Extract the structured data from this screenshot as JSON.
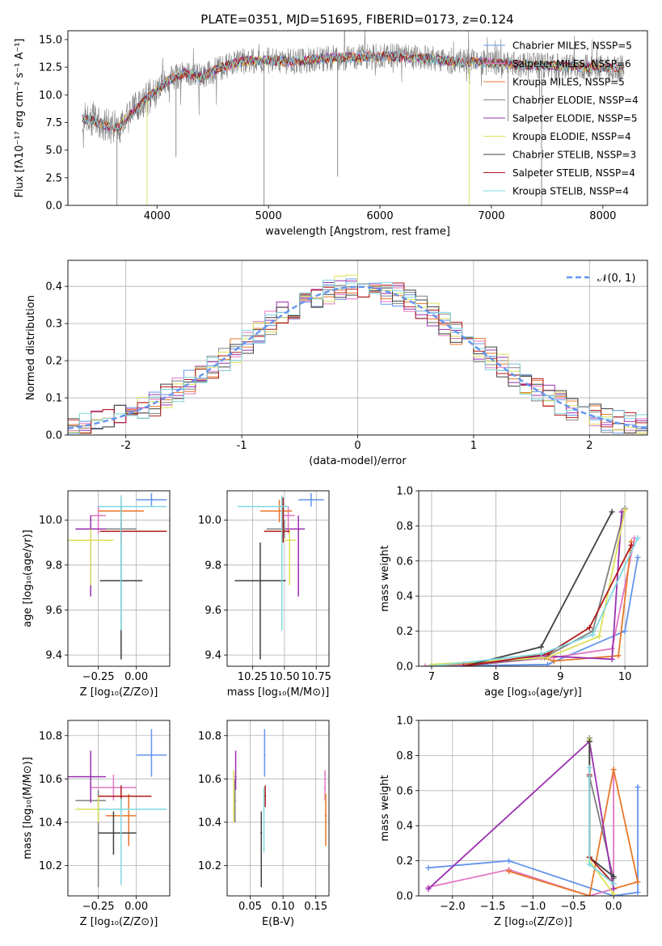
{
  "figure": {
    "title": "PLATE=0351, MJD=51695, FIBERID=0173, z=0.124"
  },
  "colors": {
    "chabrier_miles": "#6495ED",
    "salpeter_miles": "#E377C2",
    "kroupa_miles": "#E8772A",
    "chabrier_elodie": "#808080",
    "salpeter_elodie": "#9B30B0",
    "kroupa_elodie": "#DCE05A",
    "chabrier_stelib": "#404040",
    "salpeter_stelib": "#B01A1A",
    "kroupa_stelib": "#7FD8E0",
    "normal": "#6495ED"
  },
  "chart_data": [
    {
      "id": "spectrum",
      "type": "line",
      "title": "PLATE=0351, MJD=51695, FIBERID=0173, z=0.124",
      "xlabel": "wavelength [Angstrom, rest frame]",
      "ylabel": "Flux [f$_\\lambda$10$^{-17}$ erg cm$^{-2}$ s$^{-1}$ A$^{-1}$]",
      "ylabel_display": "Flux [fλ10⁻¹⁷ erg cm⁻² s⁻¹ A⁻¹]",
      "xlim": [
        3200,
        8400
      ],
      "ylim": [
        0,
        15.8
      ],
      "xticks": [
        4000,
        5000,
        6000,
        7000,
        8000
      ],
      "yticks": [
        0.0,
        2.5,
        5.0,
        7.5,
        10.0,
        12.5,
        15.0
      ],
      "grid": false,
      "legend_position": "right",
      "legend": [
        "Chabrier MILES, N$_{SSP}$=5",
        "Salpeter MILES, N$_{SSP}$=6",
        "Kroupa MILES, N$_{SSP}$=5",
        "Chabrier ELODIE, N$_{SSP}$=4",
        "Salpeter ELODIE, N$_{SSP}$=5",
        "Kroupa ELODIE, N$_{SSP}$=4",
        "Chabrier STELIB, N$_{SSP}$=3",
        "Salpeter STELIB, N$_{SSP}$=4",
        "Kroupa STELIB, N$_{SSP}$=4"
      ],
      "legend_display": [
        "Chabrier MILES, NSSP=5",
        "Salpeter MILES, NSSP=6",
        "Kroupa MILES, NSSP=5",
        "Chabrier ELODIE, NSSP=4",
        "Salpeter ELODIE, NSSP=5",
        "Kroupa ELODIE, NSSP=4",
        "Chabrier STELIB, NSSP=3",
        "Salpeter STELIB, NSSP=4",
        "Kroupa STELIB, NSSP=4"
      ],
      "continuum": {
        "x": [
          3330,
          3450,
          3550,
          3650,
          3800,
          3950,
          4100,
          4250,
          4400,
          4600,
          4800,
          5000,
          5200,
          5500,
          5800,
          6100,
          6400,
          6700,
          7000,
          7300,
          7600,
          7900,
          8180
        ],
        "y": [
          7.8,
          7.6,
          7.2,
          7.0,
          8.6,
          10.0,
          11.3,
          12.0,
          11.6,
          12.6,
          13.1,
          13.1,
          13.0,
          13.3,
          13.4,
          13.5,
          13.3,
          13.0,
          12.9,
          12.7,
          12.6,
          12.5,
          12.4
        ]
      }
    },
    {
      "id": "residuals",
      "type": "line",
      "xlabel": "(data-model)/error",
      "ylabel": "Normed distribution",
      "xlim": [
        -2.5,
        2.5
      ],
      "ylim": [
        0,
        0.47
      ],
      "xticks": [
        -2,
        -1,
        0,
        1,
        2
      ],
      "yticks": [
        0.0,
        0.1,
        0.2,
        0.3,
        0.4
      ],
      "grid": true,
      "legend": [
        "$\\mathcal{N}(0,1)$"
      ],
      "legend_display": [
        "𝒩(0, 1)"
      ],
      "legend_position": "top-right",
      "hist_bins": 50,
      "normal_curve": {
        "mu": 0,
        "sigma": 1
      }
    },
    {
      "id": "age-vs-z",
      "type": "scatter",
      "xlabel": "Z [log$_{10}$(Z/Z$_\\odot$)]",
      "xlabel_display": "Z [log₁₀(Z/Z⊙)]",
      "ylabel": "age  [log$_{10}$(age/yr)]",
      "ylabel_display": "age  [log₁₀(age/yr)]",
      "xlim": [
        -0.45,
        0.22
      ],
      "ylim": [
        9.35,
        10.13
      ],
      "xticks": [
        -0.25,
        0.0
      ],
      "xtick_labels": [
        "−0.25",
        "0.00"
      ],
      "yticks": [
        9.4,
        9.6,
        9.8,
        10.0
      ],
      "grid": true,
      "points": [
        {
          "x": 0.1,
          "y": 10.09,
          "xerr": [
            0.1,
            0.1
          ],
          "yerr": [
            0.03,
            0.03
          ],
          "c": "chabrier_miles"
        },
        {
          "x": -0.25,
          "y": 10.02,
          "xerr": [
            0.05,
            0.05
          ],
          "yerr": [
            0.08,
            0.04
          ],
          "c": "salpeter_miles"
        },
        {
          "x": -0.1,
          "y": 10.04,
          "xerr": [
            0.15,
            0.15
          ],
          "yerr": [
            0.05,
            0.05
          ],
          "c": "kroupa_miles"
        },
        {
          "x": -0.1,
          "y": 9.96,
          "xerr": [
            0.3,
            0.1
          ],
          "yerr": [
            0.04,
            0.04
          ],
          "c": "chabrier_elodie"
        },
        {
          "x": -0.3,
          "y": 9.96,
          "xerr": [
            0.1,
            0.1
          ],
          "yerr": [
            0.3,
            0.06
          ],
          "c": "salpeter_elodie"
        },
        {
          "x": -0.3,
          "y": 9.91,
          "xerr": [
            0.15,
            0.15
          ],
          "yerr": [
            0.2,
            0.05
          ],
          "c": "kroupa_elodie"
        },
        {
          "x": -0.1,
          "y": 9.73,
          "xerr": [
            0.14,
            0.14
          ],
          "yerr": [
            0.35,
            0.33
          ],
          "c": "chabrier_stelib"
        },
        {
          "x": -0.1,
          "y": 9.95,
          "xerr": [
            0.14,
            0.3
          ],
          "yerr": [
            0.05,
            0.05
          ],
          "c": "salpeter_stelib"
        },
        {
          "x": -0.1,
          "y": 10.06,
          "xerr": [
            0.15,
            0.3
          ],
          "yerr": [
            0.55,
            0.05
          ],
          "c": "kroupa_stelib"
        }
      ]
    },
    {
      "id": "age-vs-mass",
      "type": "scatter",
      "xlabel": "mass [log$_{10}$(M/M$_\\odot$)]",
      "xlabel_display": "mass [log₁₀(M/M⊙)]",
      "ylabel": "",
      "xlim": [
        10.05,
        10.85
      ],
      "ylim": [
        9.35,
        10.13
      ],
      "xticks": [
        10.25,
        10.5,
        10.75
      ],
      "xtick_labels": [
        "10.25",
        "10.50",
        "10.75"
      ],
      "yticks": [
        9.4,
        9.6,
        9.8,
        10.0
      ],
      "grid": true,
      "points": [
        {
          "x": 10.71,
          "y": 10.09,
          "xerr": [
            0.1,
            0.1
          ],
          "yerr": [
            0.03,
            0.03
          ],
          "c": "chabrier_miles"
        },
        {
          "x": 10.53,
          "y": 10.02,
          "xerr": [
            0.05,
            0.05
          ],
          "yerr": [
            0.08,
            0.04
          ],
          "c": "salpeter_miles"
        },
        {
          "x": 10.46,
          "y": 10.04,
          "xerr": [
            0.15,
            0.1
          ],
          "yerr": [
            0.05,
            0.05
          ],
          "c": "kroupa_miles"
        },
        {
          "x": 10.5,
          "y": 9.96,
          "xerr": [
            0.14,
            0.1
          ],
          "yerr": [
            0.04,
            0.04
          ],
          "c": "chabrier_elodie"
        },
        {
          "x": 10.61,
          "y": 9.96,
          "xerr": [
            0.1,
            0.05
          ],
          "yerr": [
            0.3,
            0.06
          ],
          "c": "salpeter_elodie"
        },
        {
          "x": 10.54,
          "y": 9.91,
          "xerr": [
            0.05,
            0.05
          ],
          "yerr": [
            0.2,
            0.05
          ],
          "c": "kroupa_elodie"
        },
        {
          "x": 10.31,
          "y": 9.73,
          "xerr": [
            0.2,
            0.2
          ],
          "yerr": [
            0.35,
            0.17
          ],
          "c": "chabrier_stelib"
        },
        {
          "x": 10.49,
          "y": 9.95,
          "xerr": [
            0.15,
            0.05
          ],
          "yerr": [
            0.05,
            0.15
          ],
          "c": "salpeter_stelib"
        },
        {
          "x": 10.48,
          "y": 10.06,
          "xerr": [
            0.35,
            0.05
          ],
          "yerr": [
            0.55,
            0.05
          ],
          "c": "kroupa_stelib"
        }
      ]
    },
    {
      "id": "weight-vs-age",
      "type": "line",
      "xlabel": "age  [log$_{10}$(age/yr)]",
      "xlabel_display": "age  [log₁₀(age/yr)]",
      "ylabel": "mass weight",
      "xlim": [
        6.8,
        10.35
      ],
      "ylim": [
        0,
        1.0
      ],
      "xticks": [
        7,
        8,
        9,
        10
      ],
      "yticks": [
        0.0,
        0.2,
        0.4,
        0.6,
        0.8,
        1.0
      ],
      "grid": true,
      "series": [
        {
          "c": "chabrier_miles",
          "x": [
            7.0,
            8.8,
            10.0,
            10.2
          ],
          "y": [
            0.0,
            0.01,
            0.2,
            0.62
          ]
        },
        {
          "c": "salpeter_miles",
          "x": [
            6.9,
            8.0,
            8.9,
            9.8,
            10.15
          ],
          "y": [
            0.0,
            0.02,
            0.05,
            0.1,
            0.73
          ]
        },
        {
          "c": "kroupa_miles",
          "x": [
            7.0,
            8.7,
            8.9,
            9.9,
            10.1
          ],
          "y": [
            0.0,
            0.05,
            0.03,
            0.06,
            0.71
          ]
        },
        {
          "c": "chabrier_elodie",
          "x": [
            7.5,
            8.75,
            9.5,
            10.0
          ],
          "y": [
            0.0,
            0.05,
            0.2,
            0.9
          ]
        },
        {
          "c": "salpeter_elodie",
          "x": [
            7.5,
            8.7,
            9.8,
            9.95
          ],
          "y": [
            0.0,
            0.06,
            0.04,
            0.88
          ]
        },
        {
          "c": "kroupa_elodie",
          "x": [
            7.0,
            8.8,
            9.6,
            10.0
          ],
          "y": [
            0.01,
            0.05,
            0.17,
            0.89
          ]
        },
        {
          "c": "chabrier_stelib",
          "x": [
            7.5,
            8.7,
            9.8
          ],
          "y": [
            0.0,
            0.11,
            0.88
          ]
        },
        {
          "c": "salpeter_stelib",
          "x": [
            7.5,
            8.8,
            9.45,
            10.1
          ],
          "y": [
            0.0,
            0.07,
            0.22,
            0.69
          ]
        },
        {
          "c": "kroupa_stelib",
          "x": [
            7.0,
            8.7,
            9.5,
            10.2
          ],
          "y": [
            0.0,
            0.07,
            0.18,
            0.73
          ]
        }
      ]
    },
    {
      "id": "mass-vs-z",
      "type": "scatter",
      "xlabel": "Z [log$_{10}$(Z/Z$_\\odot$)]",
      "xlabel_display": "Z [log₁₀(Z/Z⊙)]",
      "ylabel": "mass [log$_{10}$(M/M$_\\odot$)]",
      "ylabel_display": "mass [log₁₀(M/M⊙)]",
      "xlim": [
        -0.45,
        0.22
      ],
      "ylim": [
        10.06,
        10.87
      ],
      "xticks": [
        -0.25,
        0.0
      ],
      "xtick_labels": [
        "−0.25",
        "0.00"
      ],
      "yticks": [
        10.2,
        10.4,
        10.6,
        10.8
      ],
      "grid": true,
      "points": [
        {
          "x": 0.1,
          "y": 10.71,
          "xerr": [
            0.1,
            0.1
          ],
          "yerr": [
            0.1,
            0.12
          ],
          "c": "chabrier_miles"
        },
        {
          "x": -0.15,
          "y": 10.56,
          "xerr": [
            0.15,
            0.15
          ],
          "yerr": [
            0.06,
            0.06
          ],
          "c": "salpeter_miles"
        },
        {
          "x": -0.05,
          "y": 10.43,
          "xerr": [
            0.15,
            0.05
          ],
          "yerr": [
            0.14,
            0.1
          ],
          "c": "kroupa_miles"
        },
        {
          "x": -0.25,
          "y": 10.5,
          "xerr": [
            0.15,
            0.05
          ],
          "yerr": [
            0.4,
            0.05
          ],
          "c": "chabrier_elodie"
        },
        {
          "x": -0.3,
          "y": 10.61,
          "xerr": [
            0.15,
            0.1
          ],
          "yerr": [
            0.12,
            0.12
          ],
          "c": "salpeter_elodie"
        },
        {
          "x": -0.25,
          "y": 10.46,
          "xerr": [
            0.15,
            0.05
          ],
          "yerr": [
            0.06,
            0.06
          ],
          "c": "kroupa_elodie"
        },
        {
          "x": -0.15,
          "y": 10.35,
          "xerr": [
            0.1,
            0.15
          ],
          "yerr": [
            0.1,
            0.1
          ],
          "c": "chabrier_stelib"
        },
        {
          "x": -0.1,
          "y": 10.52,
          "xerr": [
            0.15,
            0.2
          ],
          "yerr": [
            0.05,
            0.05
          ],
          "c": "salpeter_stelib"
        },
        {
          "x": -0.1,
          "y": 10.46,
          "xerr": [
            0.15,
            0.3
          ],
          "yerr": [
            0.35,
            0.05
          ],
          "c": "kroupa_stelib"
        }
      ]
    },
    {
      "id": "mass-vs-ebv",
      "type": "scatter",
      "xlabel": "E(B-V)",
      "ylabel": "",
      "xlim": [
        0.015,
        0.17
      ],
      "ylim": [
        10.06,
        10.87
      ],
      "xticks": [
        0.05,
        0.1,
        0.15
      ],
      "xtick_labels": [
        "0.05",
        "0.10",
        "0.15"
      ],
      "yticks": [
        10.2,
        10.4,
        10.6,
        10.8
      ],
      "grid": true,
      "points": [
        {
          "x": 0.072,
          "y": 10.71,
          "yerr": [
            0.1,
            0.12
          ],
          "c": "chabrier_miles"
        },
        {
          "x": 0.164,
          "y": 10.56,
          "yerr": [
            0.06,
            0.08
          ],
          "c": "salpeter_miles"
        },
        {
          "x": 0.165,
          "y": 10.43,
          "yerr": [
            0.14,
            0.1
          ],
          "c": "kroupa_miles"
        },
        {
          "x": 0.027,
          "y": 10.5,
          "yerr": [
            0.1,
            0.1
          ],
          "c": "chabrier_elodie"
        },
        {
          "x": 0.028,
          "y": 10.61,
          "yerr": [
            0.06,
            0.12
          ],
          "c": "salpeter_elodie"
        },
        {
          "x": 0.025,
          "y": 10.46,
          "yerr": [
            0.06,
            0.18
          ],
          "c": "kroupa_elodie"
        },
        {
          "x": 0.067,
          "y": 10.35,
          "yerr": [
            0.25,
            0.1
          ],
          "c": "chabrier_stelib"
        },
        {
          "x": 0.073,
          "y": 10.52,
          "yerr": [
            0.05,
            0.05
          ],
          "c": "salpeter_stelib"
        },
        {
          "x": 0.071,
          "y": 10.46,
          "yerr": [
            0.2,
            0.1
          ],
          "c": "kroupa_stelib"
        }
      ]
    },
    {
      "id": "weight-vs-z",
      "type": "line",
      "xlabel": "Z [log$_{10}$(Z/Z$_\\odot$)]",
      "xlabel_display": "Z [log₁₀(Z/Z⊙)]",
      "ylabel": "mass weight",
      "xlim": [
        -2.42,
        0.42
      ],
      "ylim": [
        0,
        1.0
      ],
      "xticks": [
        -2.0,
        -1.5,
        -1.0,
        -0.5,
        0.0
      ],
      "xtick_labels": [
        "−2.0",
        "−1.5",
        "−1.0",
        "−0.5",
        "0.0"
      ],
      "yticks": [
        0.0,
        0.2,
        0.4,
        0.6,
        0.8,
        1.0
      ],
      "grid": true,
      "series": [
        {
          "c": "chabrier_miles",
          "x": [
            -2.3,
            -1.3,
            0.0,
            0.3,
            0.3
          ],
          "y": [
            0.16,
            0.2,
            0.0,
            0.02,
            0.62
          ]
        },
        {
          "c": "salpeter_miles",
          "x": [
            -2.3,
            -1.3,
            -0.3,
            0.0,
            0.0
          ],
          "y": [
            0.05,
            0.15,
            0.0,
            0.04,
            0.72
          ]
        },
        {
          "c": "kroupa_miles",
          "x": [
            -1.3,
            -0.3,
            0.0,
            0.3,
            0.0
          ],
          "y": [
            0.14,
            0.0,
            0.72,
            0.08,
            0.04
          ]
        },
        {
          "c": "chabrier_elodie",
          "x": [
            -0.3,
            -0.3,
            0.0
          ],
          "y": [
            0.9,
            0.68,
            0.1
          ]
        },
        {
          "c": "salpeter_elodie",
          "x": [
            -2.3,
            -0.3,
            0.0
          ],
          "y": [
            0.04,
            0.88,
            0.04
          ]
        },
        {
          "c": "kroupa_elodie",
          "x": [
            -0.3,
            -0.3,
            0.0
          ],
          "y": [
            0.89,
            0.2,
            0.01
          ]
        },
        {
          "c": "chabrier_stelib",
          "x": [
            -0.3,
            -0.3,
            0.0
          ],
          "y": [
            0.88,
            0.22,
            0.11
          ]
        },
        {
          "c": "salpeter_stelib",
          "x": [
            -0.3,
            -0.3,
            0.0
          ],
          "y": [
            0.69,
            0.22,
            0.07
          ]
        },
        {
          "c": "kroupa_stelib",
          "x": [
            -0.3,
            -0.3,
            0.0
          ],
          "y": [
            0.73,
            0.18,
            0.07
          ]
        }
      ]
    }
  ]
}
